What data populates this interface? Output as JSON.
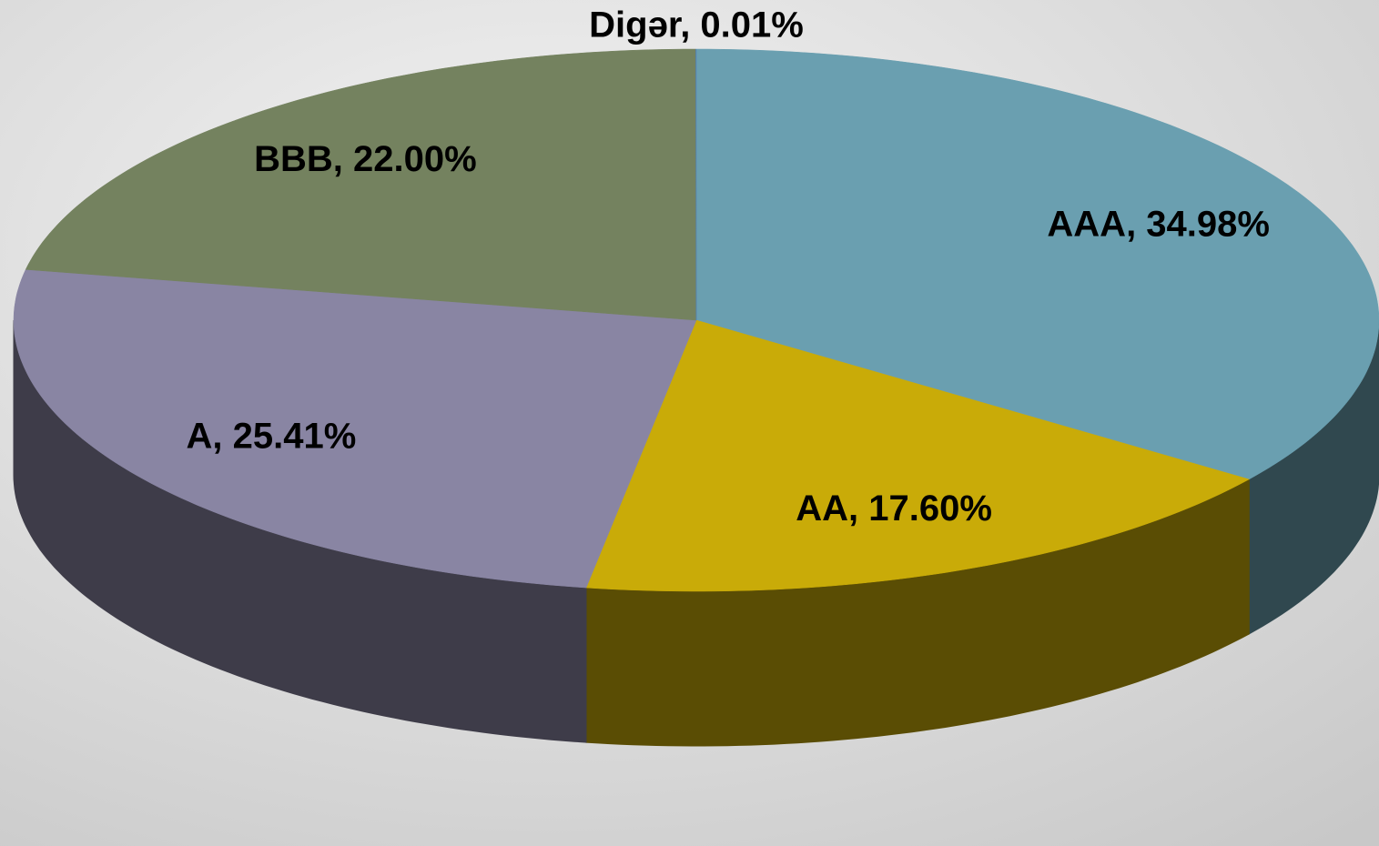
{
  "chart_data": {
    "type": "pie",
    "values": [
      34.98,
      17.6,
      25.41,
      22.0,
      0.01
    ],
    "value_labels": [
      "AAA, 34.98%",
      "AA, 17.60%",
      "A, 25.41%",
      "BBB, 22.00%",
      "Digər, 0.01%"
    ],
    "colors": [
      "#6a9fb0",
      "#c9ab08",
      "#8985a3",
      "#74825f",
      "#4f81bd"
    ]
  }
}
